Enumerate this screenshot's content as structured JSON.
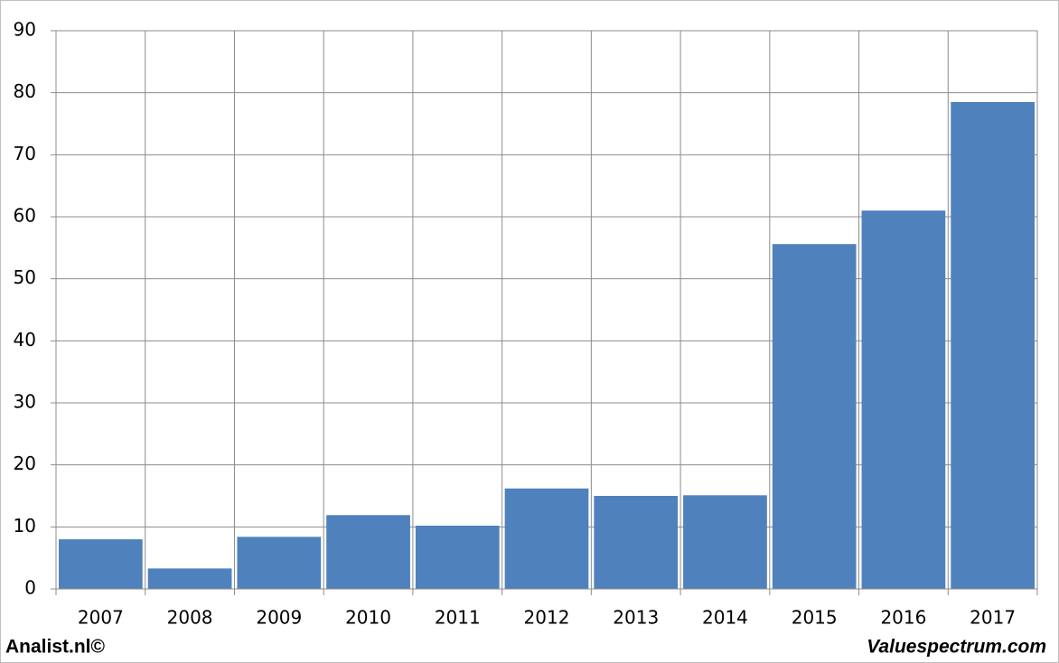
{
  "chart_data": {
    "type": "bar",
    "categories": [
      "2007",
      "2008",
      "2009",
      "2010",
      "2011",
      "2012",
      "2013",
      "2014",
      "2015",
      "2016",
      "2017"
    ],
    "values": [
      8.0,
      3.3,
      8.4,
      11.9,
      10.2,
      16.2,
      15.0,
      15.1,
      55.6,
      61.0,
      78.5
    ],
    "color": "#4f81bd",
    "ylim": [
      0,
      90
    ],
    "yticks": [
      0,
      10,
      20,
      30,
      40,
      50,
      60,
      70,
      80,
      90
    ],
    "grid": true,
    "footer_left": "Analist.nl©",
    "footer_right": "Valuespectrum.com"
  }
}
